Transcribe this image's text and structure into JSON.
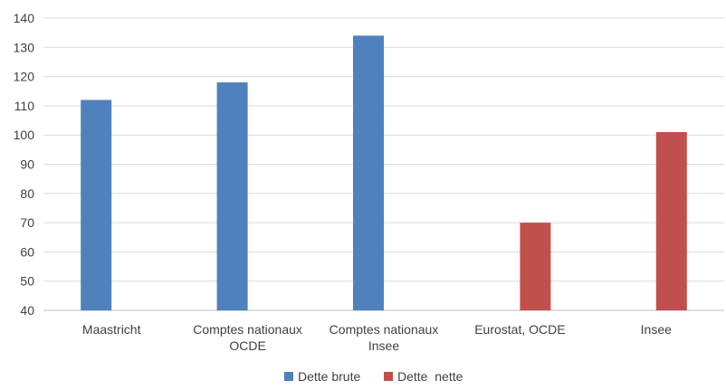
{
  "chart_data": {
    "type": "bar",
    "categories": [
      [
        "Maastricht"
      ],
      [
        "Comptes nationaux",
        "OCDE"
      ],
      [
        "Comptes nationaux",
        "Insee"
      ],
      [
        "Eurostat, OCDE"
      ],
      [
        "Insee"
      ]
    ],
    "series": [
      {
        "name": "Dette brute",
        "color": "#4f81bd",
        "values": [
          112,
          118,
          134,
          null,
          null
        ]
      },
      {
        "name": "Dette  nette",
        "color": "#c0504d",
        "values": [
          null,
          null,
          null,
          70,
          101
        ]
      }
    ],
    "ylim": [
      40,
      140
    ],
    "yticks": [
      40,
      50,
      60,
      70,
      80,
      90,
      100,
      110,
      120,
      130,
      140
    ],
    "grid": true,
    "legend_position": "bottom"
  }
}
